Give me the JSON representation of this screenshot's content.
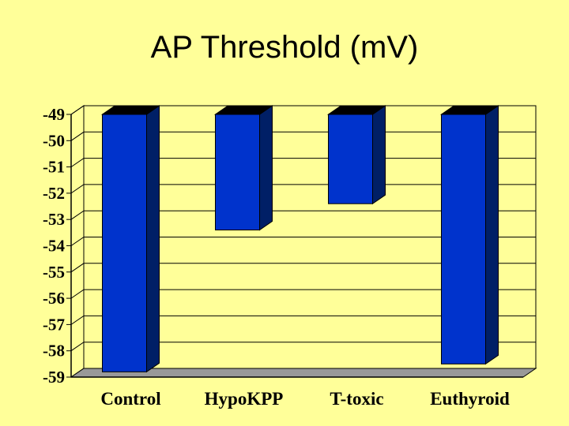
{
  "slide": {
    "title": "AP Threshold (mV)"
  },
  "chart_data": {
    "type": "bar",
    "title": "AP Threshold (mV)",
    "xlabel": "",
    "ylabel": "",
    "categories": [
      "Control",
      "HypoKPP",
      "T-toxic",
      "Euthyroid"
    ],
    "values": [
      -58.8,
      -53.4,
      -52.4,
      -58.5
    ],
    "ylim": [
      -59,
      -49
    ],
    "yticks": [
      "-49",
      "-50",
      "-51",
      "-52",
      "-53",
      "-54",
      "-55",
      "-56",
      "-57",
      "-58",
      "-59"
    ],
    "grid": true,
    "legend": "none",
    "colors": {
      "bar_front": "#0033cc",
      "bar_side": "#001f66",
      "bar_top": "#000000",
      "floor": "#999999",
      "background": "#ffff99"
    }
  }
}
